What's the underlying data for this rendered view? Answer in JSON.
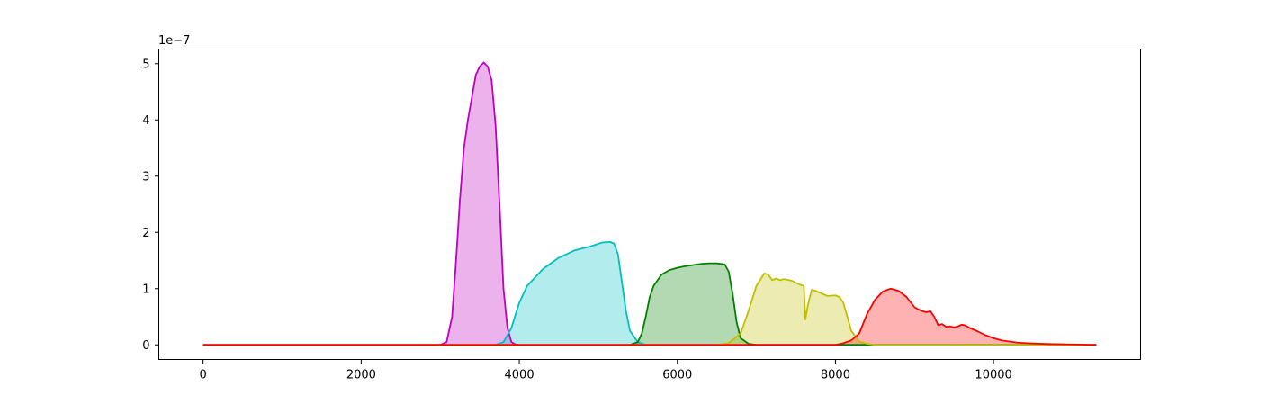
{
  "chart_data": {
    "type": "area",
    "title": "",
    "xlabel": "",
    "ylabel": "",
    "y_offset_label": "1e−7",
    "xlim": [
      -560,
      11860
    ],
    "ylim": [
      -0.26,
      5.26
    ],
    "y_scale_factor": 1e-07,
    "grid": false,
    "x_ticks": [
      0,
      2000,
      4000,
      6000,
      8000,
      10000
    ],
    "x_tick_labels": [
      "0",
      "2000",
      "4000",
      "6000",
      "8000",
      "10000"
    ],
    "y_ticks": [
      0,
      1,
      2,
      3,
      4,
      5
    ],
    "y_tick_labels": [
      "0",
      "1",
      "2",
      "3",
      "4",
      "5"
    ],
    "series": [
      {
        "color": "#bf00bf",
        "x": [
          0,
          3000,
          3080,
          3150,
          3200,
          3250,
          3300,
          3350,
          3400,
          3450,
          3500,
          3550,
          3600,
          3650,
          3700,
          3750,
          3800,
          3850,
          3900,
          3950,
          4000,
          11300
        ],
        "y": [
          0,
          0,
          0.05,
          0.5,
          1.5,
          2.6,
          3.5,
          4.0,
          4.4,
          4.8,
          4.95,
          5.02,
          4.95,
          4.7,
          3.9,
          2.5,
          1.0,
          0.3,
          0.05,
          0.01,
          0,
          0
        ]
      },
      {
        "color": "#00bfbf",
        "x": [
          0,
          3700,
          3800,
          3900,
          4000,
          4100,
          4300,
          4500,
          4700,
          4900,
          5050,
          5150,
          5200,
          5250,
          5300,
          5350,
          5400,
          5500,
          5600,
          11300
        ],
        "y": [
          0,
          0,
          0.05,
          0.3,
          0.75,
          1.05,
          1.35,
          1.55,
          1.68,
          1.75,
          1.82,
          1.83,
          1.8,
          1.6,
          1.1,
          0.6,
          0.25,
          0.05,
          0,
          0
        ]
      },
      {
        "color": "#008000",
        "x": [
          0,
          5400,
          5500,
          5550,
          5600,
          5650,
          5700,
          5800,
          5900,
          6000,
          6100,
          6200,
          6300,
          6400,
          6500,
          6600,
          6650,
          6700,
          6750,
          6800,
          6900,
          7000,
          11300
        ],
        "y": [
          0,
          0,
          0.05,
          0.2,
          0.5,
          0.85,
          1.05,
          1.25,
          1.33,
          1.37,
          1.4,
          1.42,
          1.44,
          1.45,
          1.45,
          1.43,
          1.3,
          0.9,
          0.4,
          0.12,
          0.02,
          0,
          0
        ]
      },
      {
        "color": "#bfbf00",
        "x": [
          0,
          6500,
          6650,
          6800,
          6900,
          7000,
          7100,
          7150,
          7200,
          7250,
          7300,
          7350,
          7450,
          7550,
          7600,
          7620,
          7650,
          7700,
          7750,
          7800,
          7850,
          7900,
          8000,
          8050,
          8100,
          8150,
          8200,
          8300,
          8400,
          8500,
          11300
        ],
        "y": [
          0,
          0,
          0.03,
          0.2,
          0.6,
          1.05,
          1.27,
          1.25,
          1.15,
          1.18,
          1.15,
          1.17,
          1.14,
          1.07,
          1.05,
          0.45,
          0.7,
          0.98,
          0.96,
          0.93,
          0.9,
          0.87,
          0.88,
          0.85,
          0.75,
          0.5,
          0.25,
          0.06,
          0.02,
          0,
          0
        ]
      },
      {
        "color": "#ff0000",
        "x": [
          0,
          8000,
          8100,
          8200,
          8300,
          8400,
          8500,
          8600,
          8700,
          8800,
          8900,
          9000,
          9050,
          9100,
          9150,
          9200,
          9250,
          9300,
          9350,
          9400,
          9450,
          9500,
          9550,
          9600,
          9650,
          9700,
          9800,
          9900,
          10000,
          10100,
          10200,
          10300,
          10500,
          10700,
          11000,
          11300
        ],
        "y": [
          0,
          0,
          0.03,
          0.08,
          0.2,
          0.55,
          0.8,
          0.95,
          1.0,
          0.96,
          0.85,
          0.67,
          0.63,
          0.6,
          0.58,
          0.6,
          0.5,
          0.35,
          0.37,
          0.32,
          0.33,
          0.31,
          0.33,
          0.36,
          0.34,
          0.3,
          0.24,
          0.17,
          0.12,
          0.08,
          0.06,
          0.04,
          0.025,
          0.015,
          0.008,
          0
        ]
      }
    ]
  }
}
